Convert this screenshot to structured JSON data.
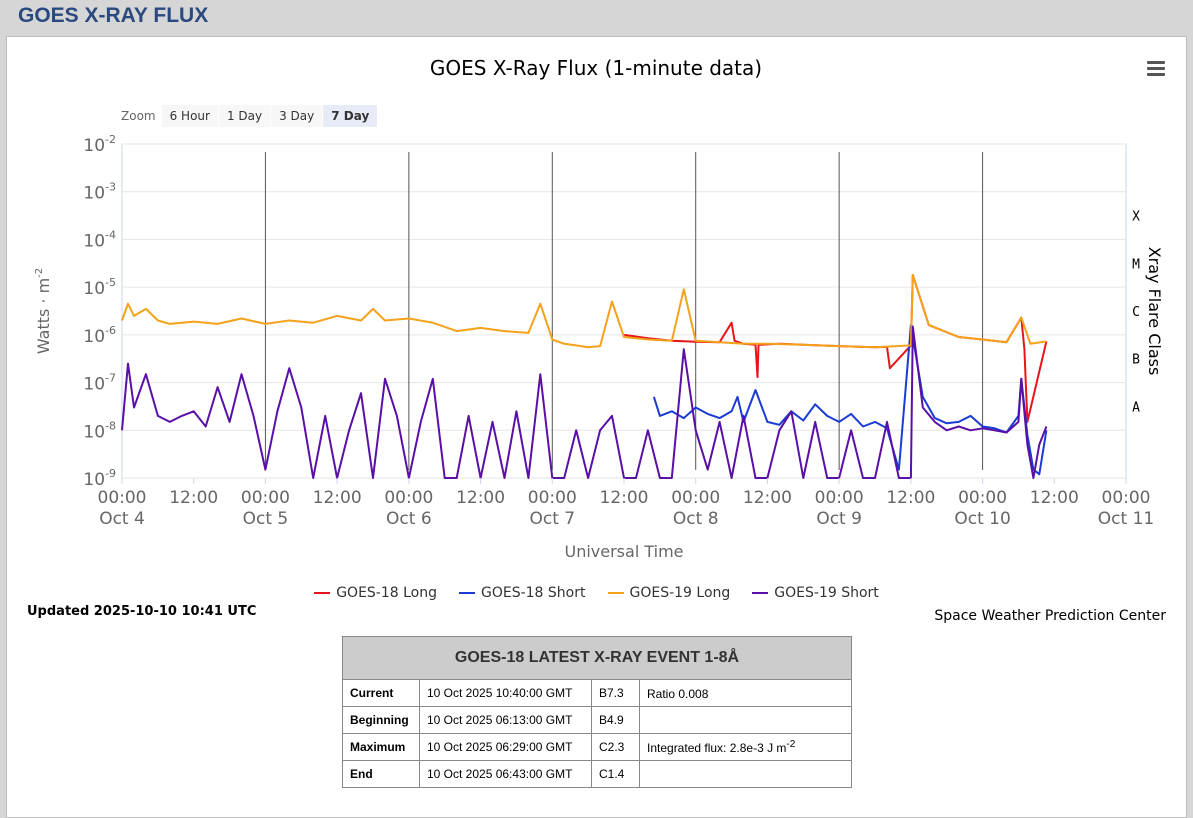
{
  "page_title": "GOES X-RAY FLUX",
  "chart_data": {
    "type": "line",
    "title": "GOES X-Ray Flux (1-minute data)",
    "xlabel": "Universal Time",
    "ylabel": "Watts · m",
    "ylabel_sup": "-2",
    "y2label": "Xray Flare Class",
    "yscale": "log",
    "ylim": [
      1e-09,
      0.01
    ],
    "y_ticks": [
      {
        "base": "10",
        "exp": "-2"
      },
      {
        "base": "10",
        "exp": "-3"
      },
      {
        "base": "10",
        "exp": "-4"
      },
      {
        "base": "10",
        "exp": "-5"
      },
      {
        "base": "10",
        "exp": "-6"
      },
      {
        "base": "10",
        "exp": "-7"
      },
      {
        "base": "10",
        "exp": "-8"
      },
      {
        "base": "10",
        "exp": "-9"
      }
    ],
    "x_range": [
      "2025-10-04 00:00",
      "2025-10-11 00:00"
    ],
    "x_ticks": [
      {
        "time": "00:00",
        "date": "Oct 4"
      },
      {
        "time": "12:00",
        "date": ""
      },
      {
        "time": "00:00",
        "date": "Oct 5"
      },
      {
        "time": "12:00",
        "date": ""
      },
      {
        "time": "00:00",
        "date": "Oct 6"
      },
      {
        "time": "12:00",
        "date": ""
      },
      {
        "time": "00:00",
        "date": "Oct 7"
      },
      {
        "time": "12:00",
        "date": ""
      },
      {
        "time": "00:00",
        "date": "Oct 8"
      },
      {
        "time": "12:00",
        "date": ""
      },
      {
        "time": "00:00",
        "date": "Oct 9"
      },
      {
        "time": "12:00",
        "date": ""
      },
      {
        "time": "00:00",
        "date": "Oct 10"
      },
      {
        "time": "12:00",
        "date": ""
      },
      {
        "time": "00:00",
        "date": "Oct 11"
      }
    ],
    "flare_classes": [
      {
        "label": "X",
        "flux": 0.0001
      },
      {
        "label": "M",
        "flux": 1e-05
      },
      {
        "label": "C",
        "flux": 1e-06
      },
      {
        "label": "B",
        "flux": 1e-07
      },
      {
        "label": "A",
        "flux": 1e-08
      }
    ],
    "grid": true,
    "legend_position": "bottom",
    "series": [
      {
        "name": "GOES-18 Long",
        "color": "#e8141b",
        "x": [
          "2025-10-07 12:00",
          "2025-10-07 16:00",
          "2025-10-07 20:00",
          "2025-10-08 00:00",
          "2025-10-08 04:00",
          "2025-10-08 06:00",
          "2025-10-08 06:30",
          "2025-10-08 08:00",
          "2025-10-08 10:00",
          "2025-10-08 10:20",
          "2025-10-08 10:30",
          "2025-10-08 14:00",
          "2025-10-08 18:00",
          "2025-10-09 00:00",
          "2025-10-09 06:00",
          "2025-10-09 08:00",
          "2025-10-09 08:30",
          "2025-10-09 12:00",
          "2025-10-09 12:20",
          "2025-10-09 15:00",
          "2025-10-09 20:00",
          "2025-10-10 00:00",
          "2025-10-10 04:00",
          "2025-10-10 06:29",
          "2025-10-10 07:00",
          "2025-10-10 07:30",
          "2025-10-10 10:41"
        ],
        "y": [
          1e-06,
          8.5e-07,
          7.5e-07,
          7.2e-07,
          7e-07,
          1.8e-06,
          7.5e-07,
          6.5e-07,
          6.2e-07,
          1.3e-07,
          6.2e-07,
          6.5e-07,
          6.2e-07,
          5.8e-07,
          5.5e-07,
          5.6e-07,
          2e-07,
          6e-07,
          1.8e-05,
          1.6e-06,
          9e-07,
          8e-07,
          7e-07,
          2.3e-06,
          5e-07,
          1.5e-08,
          7.3e-07
        ]
      },
      {
        "name": "GOES-18 Short",
        "color": "#1a3bd4",
        "x": [
          "2025-10-07 17:00",
          "2025-10-07 18:00",
          "2025-10-07 20:00",
          "2025-10-07 22:00",
          "2025-10-08 00:00",
          "2025-10-08 02:00",
          "2025-10-08 04:00",
          "2025-10-08 06:00",
          "2025-10-08 07:00",
          "2025-10-08 08:00",
          "2025-10-08 10:00",
          "2025-10-08 12:00",
          "2025-10-08 14:00",
          "2025-10-08 16:00",
          "2025-10-08 18:00",
          "2025-10-08 20:00",
          "2025-10-08 22:00",
          "2025-10-09 00:00",
          "2025-10-09 02:00",
          "2025-10-09 04:00",
          "2025-10-09 06:00",
          "2025-10-09 08:00",
          "2025-10-09 10:00",
          "2025-10-09 12:00",
          "2025-10-09 14:00",
          "2025-10-09 16:00",
          "2025-10-09 18:00",
          "2025-10-09 20:00",
          "2025-10-09 22:00",
          "2025-10-10 00:00",
          "2025-10-10 02:00",
          "2025-10-10 04:00",
          "2025-10-10 06:00",
          "2025-10-10 06:29",
          "2025-10-10 07:30",
          "2025-10-10 08:30",
          "2025-10-10 09:30",
          "2025-10-10 10:41"
        ],
        "y": [
          5e-08,
          2e-08,
          2.5e-08,
          1.8e-08,
          3e-08,
          2.2e-08,
          1.8e-08,
          2.5e-08,
          5e-08,
          1.5e-08,
          7e-08,
          1.5e-08,
          1.3e-08,
          2.5e-08,
          1.6e-08,
          3.5e-08,
          2e-08,
          1.5e-08,
          2.2e-08,
          1.2e-08,
          1.5e-08,
          1.1e-08,
          1.5e-09,
          1.6e-06,
          5e-08,
          1.8e-08,
          1.4e-08,
          1.5e-08,
          2e-08,
          1.2e-08,
          1.1e-08,
          9e-09,
          2e-08,
          1.2e-07,
          8e-09,
          1.5e-09,
          1.2e-09,
          1e-08
        ]
      },
      {
        "name": "GOES-19 Long",
        "color": "#f5a21b",
        "x": [
          "2025-10-04 00:00",
          "2025-10-04 01:00",
          "2025-10-04 02:00",
          "2025-10-04 04:00",
          "2025-10-04 06:00",
          "2025-10-04 08:00",
          "2025-10-04 12:00",
          "2025-10-04 16:00",
          "2025-10-04 20:00",
          "2025-10-05 00:00",
          "2025-10-05 04:00",
          "2025-10-05 08:00",
          "2025-10-05 12:00",
          "2025-10-05 16:00",
          "2025-10-05 18:00",
          "2025-10-05 20:00",
          "2025-10-06 00:00",
          "2025-10-06 04:00",
          "2025-10-06 08:00",
          "2025-10-06 12:00",
          "2025-10-06 16:00",
          "2025-10-06 20:00",
          "2025-10-06 22:00",
          "2025-10-07 00:00",
          "2025-10-07 02:00",
          "2025-10-07 04:00",
          "2025-10-07 06:00",
          "2025-10-07 08:00",
          "2025-10-07 10:00",
          "2025-10-07 12:00",
          "2025-10-07 16:00",
          "2025-10-07 20:00",
          "2025-10-07 22:00",
          "2025-10-08 00:00",
          "2025-10-08 04:00",
          "2025-10-08 08:00",
          "2025-10-08 12:00",
          "2025-10-08 18:00",
          "2025-10-09 00:00",
          "2025-10-09 06:00",
          "2025-10-09 12:00",
          "2025-10-09 12:20",
          "2025-10-09 15:00",
          "2025-10-09 20:00",
          "2025-10-10 00:00",
          "2025-10-10 04:00",
          "2025-10-10 06:29",
          "2025-10-10 08:00",
          "2025-10-10 10:41"
        ],
        "y": [
          2e-06,
          4.5e-06,
          2.5e-06,
          3.5e-06,
          2e-06,
          1.7e-06,
          1.9e-06,
          1.7e-06,
          2.2e-06,
          1.7e-06,
          2e-06,
          1.8e-06,
          2.5e-06,
          2e-06,
          3.5e-06,
          2e-06,
          2.2e-06,
          1.8e-06,
          1.2e-06,
          1.4e-06,
          1.2e-06,
          1.1e-06,
          4.5e-06,
          8e-07,
          6.5e-07,
          6e-07,
          5.5e-07,
          5.8e-07,
          5e-06,
          9e-07,
          8e-07,
          7.5e-07,
          9e-06,
          7.5e-07,
          7e-07,
          6.5e-07,
          6.5e-07,
          6.2e-07,
          5.8e-07,
          5.5e-07,
          6e-07,
          1.8e-05,
          1.6e-06,
          9e-07,
          8e-07,
          7e-07,
          2.3e-06,
          6.5e-07,
          7.3e-07
        ]
      },
      {
        "name": "GOES-19 Short",
        "color": "#5a0fa6",
        "x": [
          "2025-10-04 00:00",
          "2025-10-04 01:00",
          "2025-10-04 02:00",
          "2025-10-04 04:00",
          "2025-10-04 06:00",
          "2025-10-04 08:00",
          "2025-10-04 10:00",
          "2025-10-04 12:00",
          "2025-10-04 14:00",
          "2025-10-04 16:00",
          "2025-10-04 18:00",
          "2025-10-04 20:00",
          "2025-10-04 22:00",
          "2025-10-05 00:00",
          "2025-10-05 02:00",
          "2025-10-05 04:00",
          "2025-10-05 06:00",
          "2025-10-05 08:00",
          "2025-10-05 10:00",
          "2025-10-05 12:00",
          "2025-10-05 14:00",
          "2025-10-05 16:00",
          "2025-10-05 18:00",
          "2025-10-05 20:00",
          "2025-10-05 22:00",
          "2025-10-06 00:00",
          "2025-10-06 02:00",
          "2025-10-06 04:00",
          "2025-10-06 06:00",
          "2025-10-06 08:00",
          "2025-10-06 10:00",
          "2025-10-06 12:00",
          "2025-10-06 14:00",
          "2025-10-06 16:00",
          "2025-10-06 18:00",
          "2025-10-06 20:00",
          "2025-10-06 22:00",
          "2025-10-07 00:00",
          "2025-10-07 02:00",
          "2025-10-07 04:00",
          "2025-10-07 06:00",
          "2025-10-07 08:00",
          "2025-10-07 10:00",
          "2025-10-07 12:00",
          "2025-10-07 14:00",
          "2025-10-07 16:00",
          "2025-10-07 18:00",
          "2025-10-07 20:00",
          "2025-10-07 22:00",
          "2025-10-08 00:00",
          "2025-10-08 02:00",
          "2025-10-08 04:00",
          "2025-10-08 06:00",
          "2025-10-08 08:00",
          "2025-10-08 10:00",
          "2025-10-08 12:00",
          "2025-10-08 14:00",
          "2025-10-08 16:00",
          "2025-10-08 18:00",
          "2025-10-08 20:00",
          "2025-10-08 22:00",
          "2025-10-09 00:00",
          "2025-10-09 02:00",
          "2025-10-09 04:00",
          "2025-10-09 06:00",
          "2025-10-09 08:00",
          "2025-10-09 10:00",
          "2025-10-09 12:00",
          "2025-10-09 12:20",
          "2025-10-09 14:00",
          "2025-10-09 16:00",
          "2025-10-09 18:00",
          "2025-10-09 20:00",
          "2025-10-09 22:00",
          "2025-10-10 00:00",
          "2025-10-10 02:00",
          "2025-10-10 04:00",
          "2025-10-10 06:00",
          "2025-10-10 06:29",
          "2025-10-10 07:30",
          "2025-10-10 08:30",
          "2025-10-10 09:30",
          "2025-10-10 10:41"
        ],
        "y": [
          1e-08,
          2.5e-07,
          3e-08,
          1.5e-07,
          2e-08,
          1.5e-08,
          2e-08,
          2.5e-08,
          1.2e-08,
          8e-08,
          1.5e-08,
          1.5e-07,
          2e-08,
          1.5e-09,
          2.5e-08,
          2e-07,
          3e-08,
          1e-09,
          2e-08,
          1e-09,
          1e-08,
          6e-08,
          1e-09,
          1.2e-07,
          2e-08,
          1e-09,
          1.5e-08,
          1.2e-07,
          1e-09,
          1e-09,
          2e-08,
          1e-09,
          1.5e-08,
          1e-09,
          2.5e-08,
          1e-09,
          1.5e-07,
          1e-09,
          1e-09,
          1e-08,
          1e-09,
          1e-08,
          2e-08,
          1e-09,
          1e-09,
          1e-08,
          1e-09,
          1e-09,
          5e-07,
          1e-08,
          1.5e-09,
          1.5e-08,
          1e-09,
          2e-08,
          1e-09,
          1e-09,
          1e-08,
          2.5e-08,
          1e-09,
          1.5e-08,
          1e-09,
          1e-09,
          1e-08,
          1e-09,
          1e-09,
          1.5e-08,
          1e-09,
          1e-09,
          1.5e-06,
          3e-08,
          1.5e-08,
          1e-08,
          1.2e-08,
          1e-08,
          1.1e-08,
          1e-08,
          9e-09,
          1.5e-08,
          1.2e-07,
          5e-09,
          1e-09,
          5e-09,
          1.2e-08
        ]
      }
    ]
  },
  "zoom": {
    "label": "Zoom",
    "buttons": [
      "6 Hour",
      "1 Day",
      "3 Day",
      "7 Day"
    ],
    "active": "7 Day"
  },
  "updated": "Updated 2025-10-10 10:41 UTC",
  "credit": "Space Weather Prediction Center",
  "event_table": {
    "title": "GOES-18 LATEST X-RAY EVENT 1-8Å",
    "rows": [
      {
        "label": "Current",
        "time": "10 Oct 2025 10:40:00 GMT",
        "class": "B7.3",
        "note": "Ratio 0.008",
        "note_sup": ""
      },
      {
        "label": "Beginning",
        "time": "10 Oct 2025 06:13:00 GMT",
        "class": "B4.9",
        "note": "",
        "note_sup": ""
      },
      {
        "label": "Maximum",
        "time": "10 Oct 2025 06:29:00 GMT",
        "class": "C2.3",
        "note": "Integrated flux: 2.8e-3 J m",
        "note_sup": "-2"
      },
      {
        "label": "End",
        "time": "10 Oct 2025 06:43:00 GMT",
        "class": "C1.4",
        "note": "",
        "note_sup": ""
      }
    ]
  }
}
